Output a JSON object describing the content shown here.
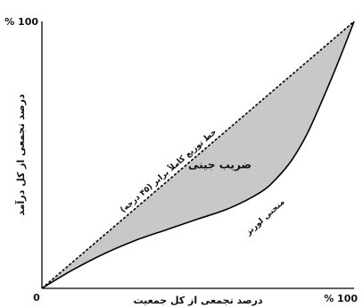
{
  "chart_data": {
    "type": "area",
    "x_tick_labels": {
      "start": "0",
      "end": "% 100"
    },
    "y_tick_labels": {
      "end": "% 100"
    },
    "xlabel": "درصد تجمعی از کل جمعیت",
    "ylabel": "درصد تجمعی از کل درآمد",
    "xlim": [
      0,
      100
    ],
    "ylim": [
      0,
      100
    ],
    "grid": false,
    "series": [
      {
        "name": "خط توزیع کاملاً برابر (۴۵ درجه)",
        "style": "dashed",
        "x": [
          0,
          100
        ],
        "y": [
          0,
          100
        ]
      },
      {
        "name": "منحنی لورنز",
        "style": "solid",
        "x": [
          0,
          10,
          20,
          30,
          40,
          50,
          60,
          70,
          75,
          80,
          85,
          90,
          95,
          100
        ],
        "y": [
          0,
          7,
          13,
          18,
          22,
          26,
          30,
          36,
          41,
          48,
          58,
          71,
          85,
          100
        ]
      }
    ],
    "annotations": [
      {
        "text": "ضریب جینی",
        "x": 57,
        "y": 45
      }
    ],
    "colors": {
      "shaded_area": "#c8c8c8",
      "lines": "#000000"
    }
  }
}
